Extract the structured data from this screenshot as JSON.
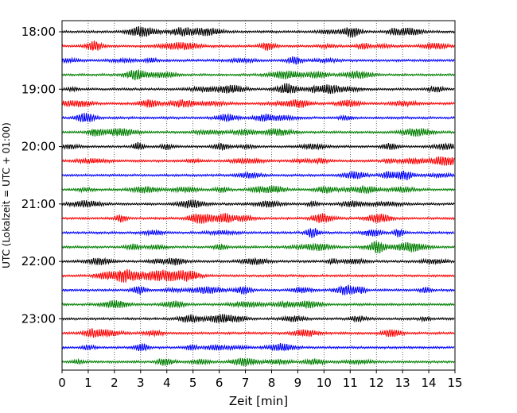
{
  "chart_data": {
    "type": "line",
    "title": "",
    "xlabel": "Zeit  [min]",
    "ylabel": "UTC (Lokalzeit = UTC + 01:00)",
    "xlim": [
      0,
      15
    ],
    "x_ticks": [
      "0",
      "1",
      "2",
      "3",
      "4",
      "5",
      "6",
      "7",
      "8",
      "9",
      "10",
      "11",
      "12",
      "13",
      "14",
      "15"
    ],
    "y_tick_labels": [
      "18:00",
      "19:00",
      "20:00",
      "21:00",
      "22:00",
      "23:00"
    ],
    "grid_x": true,
    "trace_colors": [
      "#000000",
      "#ff0000",
      "#0000ff",
      "#007f00"
    ],
    "trace_start_times": [
      "18:00",
      "18:15",
      "18:30",
      "18:45",
      "19:00",
      "19:15",
      "19:30",
      "19:45",
      "20:00",
      "20:15",
      "20:30",
      "20:45",
      "21:00",
      "21:15",
      "21:30",
      "21:45",
      "22:00",
      "22:15",
      "22:30",
      "22:45",
      "23:00",
      "23:15",
      "23:30",
      "23:45"
    ]
  }
}
